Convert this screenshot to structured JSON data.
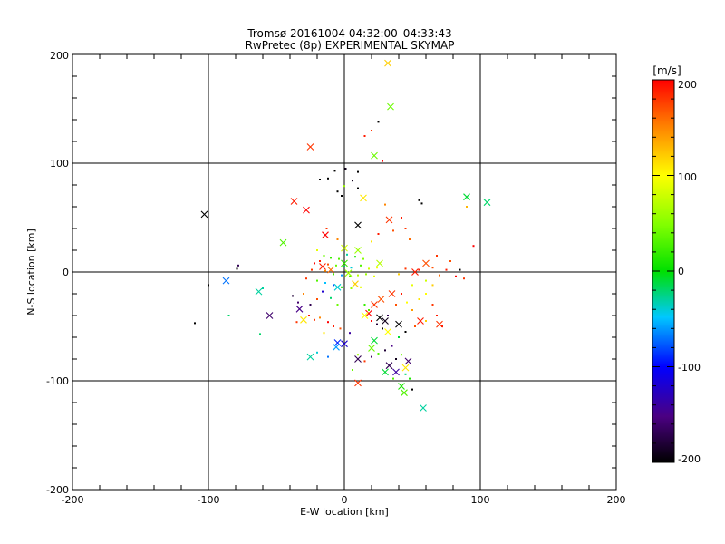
{
  "chart_data": {
    "type": "scatter",
    "title": "Tromsø 20161004 04:32:00–04:33:43",
    "subtitle": "RwPretec (8p) EXPERIMENTAL SKYMAP",
    "xlabel": "E-W location [km]",
    "ylabel": "N-S location [km]",
    "xlim": [
      -200,
      200
    ],
    "ylim": [
      -200,
      200
    ],
    "grid": true,
    "grid_lines_x": [
      -100,
      0,
      100
    ],
    "grid_lines_y": [
      -100,
      0,
      100
    ],
    "x_tick_labels": [
      "-200",
      "-100",
      "0",
      "100",
      "200"
    ],
    "y_tick_labels": [
      "200",
      "100",
      "0",
      "-100",
      "-200"
    ],
    "colorbar": {
      "label": "[m/s]",
      "min": -200,
      "max": 200,
      "tick_labels": [
        "200",
        "100",
        "0",
        "-100",
        "-200"
      ]
    },
    "series": [
      {
        "name": "crosses",
        "marker": "x",
        "points": [
          {
            "x": 32,
            "y": 192,
            "v": 120
          },
          {
            "x": 34,
            "y": 152,
            "v": 40
          },
          {
            "x": 22,
            "y": 107,
            "v": 40
          },
          {
            "x": -25,
            "y": 115,
            "v": 180
          },
          {
            "x": -103,
            "y": 53,
            "v": -200
          },
          {
            "x": -37,
            "y": 65,
            "v": 190
          },
          {
            "x": 14,
            "y": 68,
            "v": 110
          },
          {
            "x": -28,
            "y": 57,
            "v": 200
          },
          {
            "x": 33,
            "y": 48,
            "v": 180
          },
          {
            "x": 10,
            "y": 43,
            "v": -200
          },
          {
            "x": 90,
            "y": 69,
            "v": -10
          },
          {
            "x": 105,
            "y": 64,
            "v": -20
          },
          {
            "x": -45,
            "y": 27,
            "v": 30
          },
          {
            "x": -14,
            "y": 34,
            "v": 200
          },
          {
            "x": 0,
            "y": 22,
            "v": 80
          },
          {
            "x": 10,
            "y": 20,
            "v": 60
          },
          {
            "x": -16,
            "y": 5,
            "v": 190
          },
          {
            "x": -10,
            "y": 2,
            "v": 160
          },
          {
            "x": 0,
            "y": 8,
            "v": 20
          },
          {
            "x": 3,
            "y": -1,
            "v": 60
          },
          {
            "x": 26,
            "y": 8,
            "v": 70
          },
          {
            "x": 52,
            "y": 0,
            "v": 190
          },
          {
            "x": 60,
            "y": 8,
            "v": 170
          },
          {
            "x": -87,
            "y": -8,
            "v": -70
          },
          {
            "x": -63,
            "y": -18,
            "v": -30
          },
          {
            "x": -5,
            "y": -14,
            "v": -40
          },
          {
            "x": 8,
            "y": -11,
            "v": 120
          },
          {
            "x": 27,
            "y": -25,
            "v": 170
          },
          {
            "x": 35,
            "y": -20,
            "v": 180
          },
          {
            "x": -33,
            "y": -34,
            "v": -150
          },
          {
            "x": -30,
            "y": -44,
            "v": 110
          },
          {
            "x": 18,
            "y": -38,
            "v": 200
          },
          {
            "x": 22,
            "y": -30,
            "v": 180
          },
          {
            "x": 15,
            "y": -40,
            "v": 100
          },
          {
            "x": 26,
            "y": -42,
            "v": -200
          },
          {
            "x": 30,
            "y": -45,
            "v": -190
          },
          {
            "x": 56,
            "y": -45,
            "v": 190
          },
          {
            "x": 70,
            "y": -48,
            "v": 180
          },
          {
            "x": -55,
            "y": -40,
            "v": -160
          },
          {
            "x": 40,
            "y": -48,
            "v": -200
          },
          {
            "x": -5,
            "y": -65,
            "v": -90
          },
          {
            "x": 0,
            "y": -66,
            "v": -120
          },
          {
            "x": 22,
            "y": -63,
            "v": -10
          },
          {
            "x": 32,
            "y": -55,
            "v": 100
          },
          {
            "x": -25,
            "y": -78,
            "v": -30
          },
          {
            "x": 10,
            "y": -80,
            "v": -170
          },
          {
            "x": 33,
            "y": -86,
            "v": -170
          },
          {
            "x": 38,
            "y": -92,
            "v": -140
          },
          {
            "x": 45,
            "y": -88,
            "v": 110
          },
          {
            "x": 30,
            "y": -92,
            "v": -10
          },
          {
            "x": 42,
            "y": -105,
            "v": 10
          },
          {
            "x": 44,
            "y": -111,
            "v": 30
          },
          {
            "x": 58,
            "y": -125,
            "v": -30
          },
          {
            "x": 10,
            "y": -102,
            "v": 180
          },
          {
            "x": 47,
            "y": -82,
            "v": -160
          },
          {
            "x": 20,
            "y": -70,
            "v": 40
          },
          {
            "x": -6,
            "y": -69,
            "v": -60
          }
        ]
      },
      {
        "name": "dots",
        "marker": "dot",
        "points": [
          {
            "x": 25,
            "y": 138,
            "v": -200
          },
          {
            "x": 20,
            "y": 130,
            "v": 180
          },
          {
            "x": 15,
            "y": 125,
            "v": 190
          },
          {
            "x": 28,
            "y": 102,
            "v": 200
          },
          {
            "x": -7,
            "y": 93,
            "v": -200
          },
          {
            "x": 1,
            "y": 95,
            "v": -190
          },
          {
            "x": 10,
            "y": 92,
            "v": -200
          },
          {
            "x": -12,
            "y": 86,
            "v": -200
          },
          {
            "x": -18,
            "y": 85,
            "v": -200
          },
          {
            "x": 6,
            "y": 84,
            "v": -190
          },
          {
            "x": 0,
            "y": 79,
            "v": 60
          },
          {
            "x": -5,
            "y": 74,
            "v": -200
          },
          {
            "x": -2,
            "y": 70,
            "v": -200
          },
          {
            "x": 10,
            "y": 77,
            "v": -200
          },
          {
            "x": 55,
            "y": 66,
            "v": -200
          },
          {
            "x": 57,
            "y": 63,
            "v": -200
          },
          {
            "x": 30,
            "y": 62,
            "v": 150
          },
          {
            "x": 42,
            "y": 50,
            "v": 190
          },
          {
            "x": 45,
            "y": 40,
            "v": 180
          },
          {
            "x": -13,
            "y": 40,
            "v": 180
          },
          {
            "x": 25,
            "y": 35,
            "v": 190
          },
          {
            "x": 36,
            "y": 38,
            "v": 170
          },
          {
            "x": 48,
            "y": 30,
            "v": 160
          },
          {
            "x": 95,
            "y": 24,
            "v": 200
          },
          {
            "x": 90,
            "y": 60,
            "v": 130
          },
          {
            "x": -5,
            "y": 30,
            "v": 150
          },
          {
            "x": 20,
            "y": 28,
            "v": 110
          },
          {
            "x": -20,
            "y": 20,
            "v": 90
          },
          {
            "x": -15,
            "y": 15,
            "v": 40
          },
          {
            "x": -10,
            "y": 13,
            "v": 20
          },
          {
            "x": -4,
            "y": 12,
            "v": 30
          },
          {
            "x": 2,
            "y": 16,
            "v": -30
          },
          {
            "x": 8,
            "y": 14,
            "v": 10
          },
          {
            "x": 14,
            "y": 12,
            "v": 50
          },
          {
            "x": -22,
            "y": 8,
            "v": 200
          },
          {
            "x": -18,
            "y": 10,
            "v": 190
          },
          {
            "x": -12,
            "y": 7,
            "v": 170
          },
          {
            "x": -6,
            "y": 6,
            "v": 40
          },
          {
            "x": 0,
            "y": 5,
            "v": -20
          },
          {
            "x": 5,
            "y": 4,
            "v": -40
          },
          {
            "x": 12,
            "y": 6,
            "v": 30
          },
          {
            "x": 18,
            "y": 3,
            "v": 80
          },
          {
            "x": 24,
            "y": 4,
            "v": 100
          },
          {
            "x": -24,
            "y": 2,
            "v": 180
          },
          {
            "x": -14,
            "y": 1,
            "v": 150
          },
          {
            "x": -8,
            "y": -2,
            "v": 20
          },
          {
            "x": -2,
            "y": -3,
            "v": -60
          },
          {
            "x": 4,
            "y": -4,
            "v": 30
          },
          {
            "x": 10,
            "y": -3,
            "v": 70
          },
          {
            "x": 16,
            "y": -2,
            "v": 60
          },
          {
            "x": 22,
            "y": -4,
            "v": 90
          },
          {
            "x": 40,
            "y": -2,
            "v": 120
          },
          {
            "x": 45,
            "y": 3,
            "v": 180
          },
          {
            "x": 55,
            "y": 2,
            "v": 190
          },
          {
            "x": 65,
            "y": 4,
            "v": 170
          },
          {
            "x": 70,
            "y": -3,
            "v": 160
          },
          {
            "x": 75,
            "y": 2,
            "v": 190
          },
          {
            "x": 82,
            "y": -4,
            "v": 200
          },
          {
            "x": 85,
            "y": 2,
            "v": -200
          },
          {
            "x": 88,
            "y": -6,
            "v": 180
          },
          {
            "x": 78,
            "y": 10,
            "v": 170
          },
          {
            "x": 68,
            "y": 15,
            "v": 180
          },
          {
            "x": -28,
            "y": -6,
            "v": 180
          },
          {
            "x": -20,
            "y": -8,
            "v": 30
          },
          {
            "x": -14,
            "y": -10,
            "v": -50
          },
          {
            "x": -8,
            "y": -12,
            "v": -80
          },
          {
            "x": -2,
            "y": -14,
            "v": 10
          },
          {
            "x": 5,
            "y": -15,
            "v": 60
          },
          {
            "x": 12,
            "y": -14,
            "v": 90
          },
          {
            "x": -78,
            "y": 6,
            "v": -170
          },
          {
            "x": -79,
            "y": 3,
            "v": -200
          },
          {
            "x": -60,
            "y": -15,
            "v": -30
          },
          {
            "x": -100,
            "y": -12,
            "v": -200
          },
          {
            "x": -110,
            "y": -47,
            "v": -200
          },
          {
            "x": -85,
            "y": -40,
            "v": -20
          },
          {
            "x": -62,
            "y": -57,
            "v": -20
          },
          {
            "x": -38,
            "y": -22,
            "v": -180
          },
          {
            "x": -34,
            "y": -28,
            "v": -160
          },
          {
            "x": -30,
            "y": -20,
            "v": 150
          },
          {
            "x": -25,
            "y": -30,
            "v": -170
          },
          {
            "x": -20,
            "y": -25,
            "v": 170
          },
          {
            "x": -16,
            "y": -18,
            "v": -120
          },
          {
            "x": -10,
            "y": -24,
            "v": -20
          },
          {
            "x": -5,
            "y": -30,
            "v": 40
          },
          {
            "x": -26,
            "y": -40,
            "v": 190
          },
          {
            "x": -22,
            "y": -44,
            "v": 180
          },
          {
            "x": -18,
            "y": -42,
            "v": 150
          },
          {
            "x": -12,
            "y": -46,
            "v": 200
          },
          {
            "x": -8,
            "y": -50,
            "v": 190
          },
          {
            "x": -3,
            "y": -52,
            "v": 170
          },
          {
            "x": -35,
            "y": -46,
            "v": 180
          },
          {
            "x": -15,
            "y": -56,
            "v": 110
          },
          {
            "x": 4,
            "y": -56,
            "v": -140
          },
          {
            "x": 15,
            "y": -30,
            "v": 20
          },
          {
            "x": 18,
            "y": -35,
            "v": 30
          },
          {
            "x": 20,
            "y": -45,
            "v": 200
          },
          {
            "x": 24,
            "y": -48,
            "v": -180
          },
          {
            "x": 28,
            "y": -52,
            "v": -200
          },
          {
            "x": 32,
            "y": -40,
            "v": -170
          },
          {
            "x": 38,
            "y": -30,
            "v": 170
          },
          {
            "x": 42,
            "y": -20,
            "v": 190
          },
          {
            "x": 46,
            "y": -28,
            "v": 100
          },
          {
            "x": 50,
            "y": -35,
            "v": 140
          },
          {
            "x": 55,
            "y": -25,
            "v": 110
          },
          {
            "x": 60,
            "y": -20,
            "v": 100
          },
          {
            "x": 65,
            "y": -30,
            "v": 180
          },
          {
            "x": 68,
            "y": -40,
            "v": 190
          },
          {
            "x": 60,
            "y": -45,
            "v": 120
          },
          {
            "x": 52,
            "y": -50,
            "v": 170
          },
          {
            "x": 45,
            "y": -55,
            "v": -200
          },
          {
            "x": 40,
            "y": -60,
            "v": -10
          },
          {
            "x": 35,
            "y": -68,
            "v": -150
          },
          {
            "x": 30,
            "y": -72,
            "v": -180
          },
          {
            "x": 25,
            "y": -75,
            "v": 30
          },
          {
            "x": 20,
            "y": -78,
            "v": -160
          },
          {
            "x": 15,
            "y": -82,
            "v": 180
          },
          {
            "x": 10,
            "y": -76,
            "v": 60
          },
          {
            "x": 38,
            "y": -80,
            "v": -190
          },
          {
            "x": 42,
            "y": -76,
            "v": 40
          },
          {
            "x": 45,
            "y": -94,
            "v": -20
          },
          {
            "x": 48,
            "y": -98,
            "v": 10
          },
          {
            "x": 50,
            "y": -108,
            "v": -200
          },
          {
            "x": 36,
            "y": -98,
            "v": 30
          },
          {
            "x": -12,
            "y": -78,
            "v": -70
          },
          {
            "x": -20,
            "y": -74,
            "v": -40
          },
          {
            "x": 6,
            "y": -90,
            "v": 40
          },
          {
            "x": 60,
            "y": -8,
            "v": 80
          },
          {
            "x": 65,
            "y": -12,
            "v": 120
          },
          {
            "x": 50,
            "y": -12,
            "v": 90
          },
          {
            "x": 72,
            "y": -50,
            "v": 190
          }
        ]
      }
    ]
  }
}
